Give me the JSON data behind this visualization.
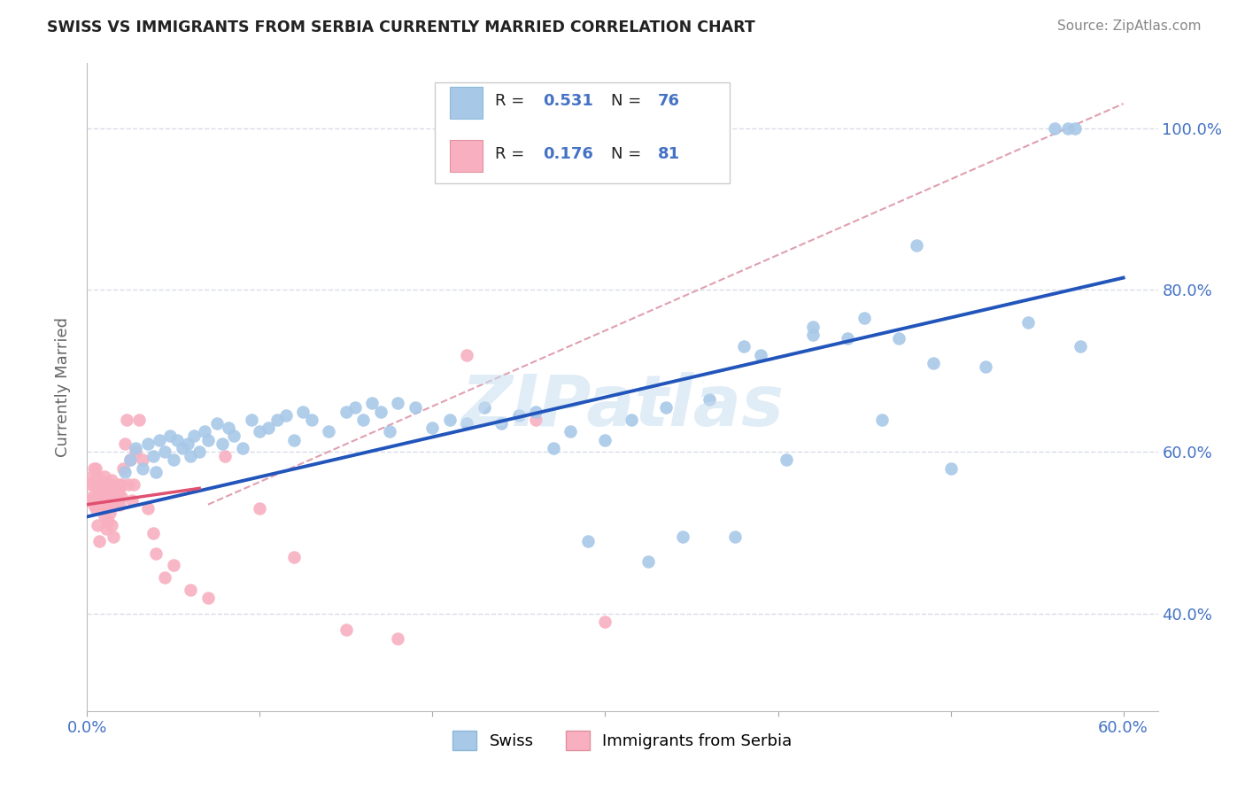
{
  "title": "SWISS VS IMMIGRANTS FROM SERBIA CURRENTLY MARRIED CORRELATION CHART",
  "source": "Source: ZipAtlas.com",
  "ylabel": "Currently Married",
  "xlim": [
    0.0,
    0.62
  ],
  "ylim": [
    0.28,
    1.08
  ],
  "xtick_vals": [
    0.0,
    0.1,
    0.2,
    0.3,
    0.4,
    0.5,
    0.6
  ],
  "xticklabels": [
    "0.0%",
    "",
    "",
    "",
    "",
    "",
    "60.0%"
  ],
  "ytick_positions": [
    0.4,
    0.6,
    0.8,
    1.0
  ],
  "yticklabels": [
    "40.0%",
    "60.0%",
    "80.0%",
    "100.0%"
  ],
  "swiss_color": "#a8c8e8",
  "serbia_color": "#f8b0c0",
  "swiss_line_color": "#2255bb",
  "serbia_line_color": "#e05070",
  "dashed_line_color": "#e0a0b0",
  "grid_color": "#d8dde8",
  "legend_title_swiss": "Swiss",
  "legend_title_serbia": "Immigrants from Serbia",
  "r_swiss": 0.531,
  "n_swiss": 76,
  "r_serbia": 0.176,
  "n_serbia": 81,
  "watermark": "ZIPatlas",
  "swiss_line_x0": 0.0,
  "swiss_line_y0": 0.52,
  "swiss_line_x1": 0.6,
  "swiss_line_y1": 0.815,
  "serbia_line_x0": 0.0,
  "serbia_line_y0": 0.535,
  "serbia_line_x1": 0.065,
  "serbia_line_y1": 0.555,
  "dashed_line_x0": 0.07,
  "dashed_line_y0": 0.535,
  "dashed_line_x1": 0.6,
  "dashed_line_y1": 1.03,
  "swiss_x": [
    0.022,
    0.025,
    0.028,
    0.032,
    0.035,
    0.038,
    0.04,
    0.042,
    0.045,
    0.048,
    0.05,
    0.052,
    0.055,
    0.058,
    0.06,
    0.062,
    0.065,
    0.068,
    0.07,
    0.075,
    0.078,
    0.082,
    0.085,
    0.09,
    0.095,
    0.1,
    0.105,
    0.11,
    0.115,
    0.12,
    0.125,
    0.13,
    0.14,
    0.15,
    0.155,
    0.16,
    0.165,
    0.17,
    0.175,
    0.18,
    0.19,
    0.2,
    0.21,
    0.22,
    0.23,
    0.24,
    0.25,
    0.26,
    0.27,
    0.28,
    0.29,
    0.3,
    0.315,
    0.325,
    0.335,
    0.345,
    0.36,
    0.375,
    0.39,
    0.405,
    0.42,
    0.44,
    0.46,
    0.48,
    0.5,
    0.52,
    0.545,
    0.56,
    0.568,
    0.572,
    0.575,
    0.38,
    0.42,
    0.45,
    0.47,
    0.49
  ],
  "swiss_y": [
    0.575,
    0.59,
    0.605,
    0.58,
    0.61,
    0.595,
    0.575,
    0.615,
    0.6,
    0.62,
    0.59,
    0.615,
    0.605,
    0.61,
    0.595,
    0.62,
    0.6,
    0.625,
    0.615,
    0.635,
    0.61,
    0.63,
    0.62,
    0.605,
    0.64,
    0.625,
    0.63,
    0.64,
    0.645,
    0.615,
    0.65,
    0.64,
    0.625,
    0.65,
    0.655,
    0.64,
    0.66,
    0.65,
    0.625,
    0.66,
    0.655,
    0.63,
    0.64,
    0.635,
    0.655,
    0.635,
    0.645,
    0.65,
    0.605,
    0.625,
    0.49,
    0.615,
    0.64,
    0.465,
    0.655,
    0.495,
    0.665,
    0.495,
    0.72,
    0.59,
    0.745,
    0.74,
    0.64,
    0.855,
    0.58,
    0.705,
    0.76,
    1.0,
    1.0,
    1.0,
    0.73,
    0.73,
    0.755,
    0.765,
    0.74,
    0.71
  ],
  "serbia_x": [
    0.002,
    0.002,
    0.003,
    0.003,
    0.004,
    0.004,
    0.004,
    0.005,
    0.005,
    0.005,
    0.006,
    0.006,
    0.006,
    0.007,
    0.007,
    0.007,
    0.008,
    0.008,
    0.008,
    0.009,
    0.009,
    0.009,
    0.01,
    0.01,
    0.01,
    0.011,
    0.011,
    0.012,
    0.012,
    0.013,
    0.013,
    0.014,
    0.014,
    0.015,
    0.015,
    0.016,
    0.016,
    0.017,
    0.017,
    0.018,
    0.018,
    0.019,
    0.019,
    0.02,
    0.02,
    0.021,
    0.022,
    0.023,
    0.024,
    0.025,
    0.026,
    0.027,
    0.028,
    0.03,
    0.032,
    0.035,
    0.038,
    0.04,
    0.045,
    0.05,
    0.06,
    0.07,
    0.08,
    0.1,
    0.12,
    0.15,
    0.18,
    0.22,
    0.26,
    0.3,
    0.005,
    0.006,
    0.007,
    0.008,
    0.009,
    0.01,
    0.011,
    0.012,
    0.013,
    0.014,
    0.015
  ],
  "serbia_y": [
    0.56,
    0.54,
    0.57,
    0.545,
    0.535,
    0.56,
    0.58,
    0.545,
    0.565,
    0.53,
    0.555,
    0.54,
    0.57,
    0.545,
    0.56,
    0.535,
    0.555,
    0.545,
    0.565,
    0.55,
    0.535,
    0.56,
    0.545,
    0.57,
    0.535,
    0.555,
    0.545,
    0.55,
    0.54,
    0.545,
    0.56,
    0.54,
    0.565,
    0.55,
    0.535,
    0.555,
    0.545,
    0.55,
    0.54,
    0.545,
    0.56,
    0.555,
    0.535,
    0.56,
    0.545,
    0.58,
    0.61,
    0.64,
    0.56,
    0.59,
    0.54,
    0.56,
    0.6,
    0.64,
    0.59,
    0.53,
    0.5,
    0.475,
    0.445,
    0.46,
    0.43,
    0.42,
    0.595,
    0.53,
    0.47,
    0.38,
    0.37,
    0.72,
    0.64,
    0.39,
    0.58,
    0.51,
    0.49,
    0.53,
    0.54,
    0.52,
    0.505,
    0.515,
    0.525,
    0.51,
    0.495
  ]
}
